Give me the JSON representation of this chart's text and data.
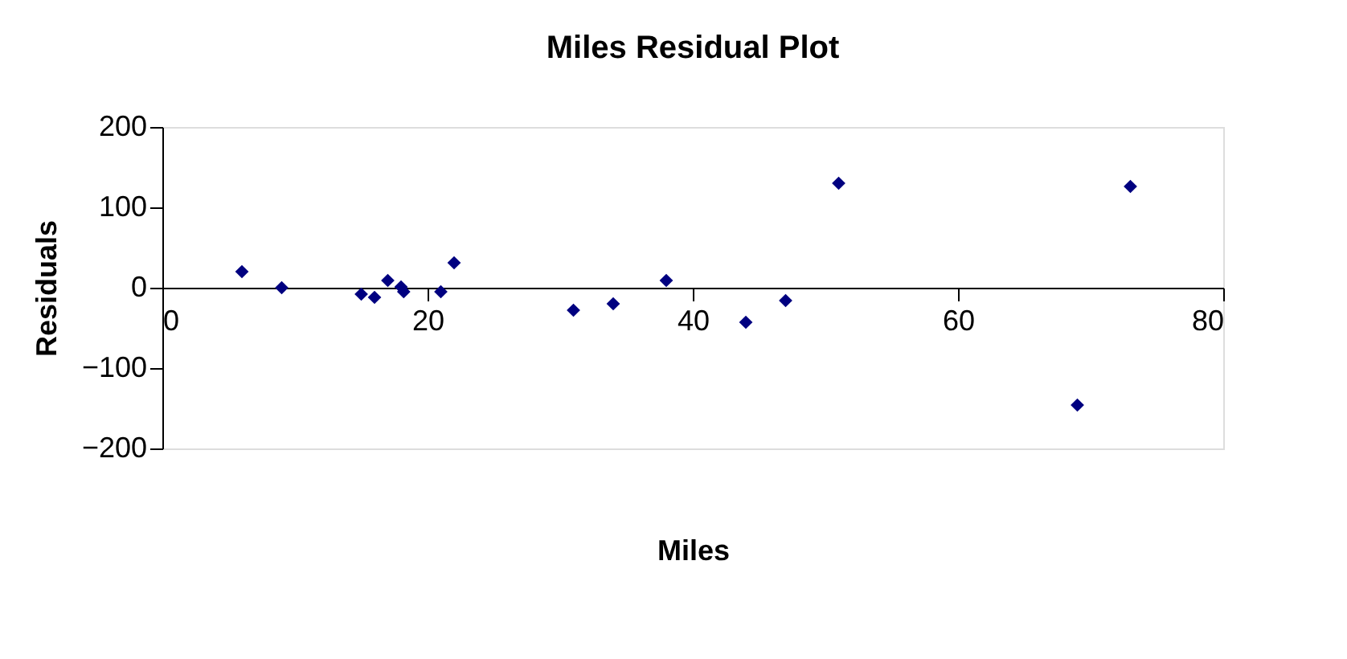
{
  "chart_data": {
    "type": "scatter",
    "title": "Miles  Residual Plot",
    "xlabel": "Miles",
    "ylabel": "Residuals",
    "x": [
      6,
      9,
      15,
      16,
      17,
      18,
      18.2,
      21,
      22,
      31,
      34,
      38,
      44,
      47,
      51,
      69,
      73
    ],
    "series": [
      {
        "color": "#000080",
        "values": [
          20,
          0,
          -8,
          -12,
          9,
          1,
          -5,
          -5,
          31,
          -28,
          -20,
          9,
          -43,
          -16,
          130,
          -146,
          126
        ]
      }
    ],
    "xlim": [
      0,
      80
    ],
    "xticks": [
      0,
      20,
      40,
      60,
      80
    ],
    "ylim": [
      -200,
      200
    ],
    "yticks": [
      -200,
      -100,
      0,
      100,
      200
    ],
    "grid": false,
    "legend": false,
    "marker": "diamond"
  }
}
